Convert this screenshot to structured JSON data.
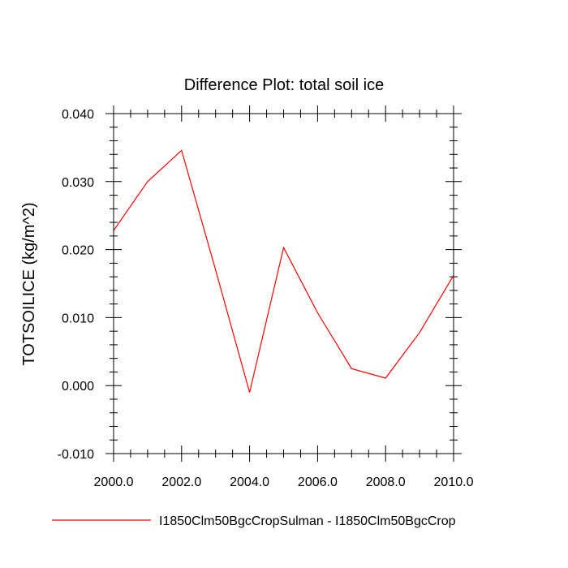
{
  "chart_data": {
    "type": "line",
    "title": "Difference Plot: total soil ice",
    "xlabel": "",
    "ylabel": "TOTSOILICE  (kg/m^2)",
    "xlim": [
      2000,
      2010
    ],
    "ylim": [
      -0.01,
      0.04
    ],
    "x_ticks": [
      2000,
      2002,
      2004,
      2006,
      2008,
      2010
    ],
    "x_tick_labels": [
      "2000.0",
      "2002.0",
      "2004.0",
      "2006.0",
      "2008.0",
      "2010.0"
    ],
    "y_ticks": [
      -0.01,
      0.0,
      0.01,
      0.02,
      0.03,
      0.04
    ],
    "y_tick_labels": [
      "-0.010",
      "0.000",
      "0.010",
      "0.020",
      "0.030",
      "0.040"
    ],
    "grid": false,
    "legend_position": "bottom",
    "series": [
      {
        "name": "I1850Clm50BgcCropSulman - I1850Clm50BgcCrop",
        "color": "#ff0000",
        "x": [
          2000,
          2001,
          2002,
          2003,
          2004,
          2005,
          2006,
          2007,
          2008,
          2009,
          2010
        ],
        "y": [
          0.0228,
          0.03,
          0.0346,
          0.017,
          -0.001,
          0.0203,
          0.0107,
          0.0025,
          0.0011,
          0.0078,
          0.0162
        ]
      }
    ]
  }
}
